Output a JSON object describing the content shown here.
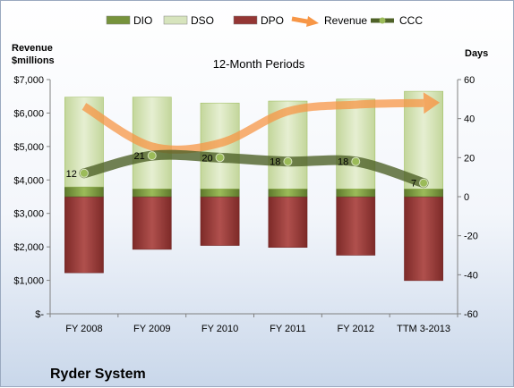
{
  "chart_data": {
    "type": "bar",
    "title": "12-Month Periods",
    "footer": "Ryder System",
    "left_axis_title_line1": "Revenue",
    "left_axis_title_line2": "$millions",
    "right_axis_title": "Days",
    "categories": [
      "FY 2008",
      "FY 2009",
      "FY 2010",
      "FY 2011",
      "FY 2012",
      "TTM 3-2013"
    ],
    "left_axis": {
      "range": [
        0,
        7000
      ],
      "ticks": [
        0,
        1000,
        2000,
        3000,
        4000,
        5000,
        6000,
        7000
      ],
      "tick_labels": [
        "$-",
        "$1,000",
        "$2,000",
        "$3,000",
        "$4,000",
        "$5,000",
        "$6,000",
        "$7,000"
      ]
    },
    "right_axis": {
      "range": [
        -60,
        60
      ],
      "ticks": [
        -60,
        -40,
        -20,
        0,
        20,
        40,
        60
      ],
      "tick_labels": [
        "-60",
        "-40",
        "-20",
        "0",
        "20",
        "40",
        "60"
      ]
    },
    "series": [
      {
        "name": "DIO",
        "axis": "right",
        "kind": "stacked-bar",
        "color": "#77933c",
        "values": [
          5,
          4,
          4,
          4,
          4,
          4
        ]
      },
      {
        "name": "DSO",
        "axis": "right",
        "kind": "stacked-bar",
        "color": "#d7e4bd",
        "values": [
          46,
          47,
          44,
          45,
          46,
          50
        ]
      },
      {
        "name": "DPO",
        "axis": "right",
        "kind": "stacked-bar-negative",
        "color": "#943634",
        "values": [
          -39,
          -27,
          -25,
          -26,
          -30,
          -43
        ]
      },
      {
        "name": "Revenue",
        "axis": "left",
        "kind": "line",
        "color": "#f79646",
        "values": [
          6200,
          5000,
          5100,
          6050,
          6250,
          6300
        ]
      },
      {
        "name": "CCC",
        "axis": "right",
        "kind": "line",
        "color": "#4f6228",
        "values": [
          12,
          21,
          20,
          18,
          18,
          7
        ],
        "labels": [
          "12",
          "21",
          "20",
          "18",
          "18",
          "7"
        ]
      }
    ],
    "legend": [
      {
        "name": "DIO",
        "color": "#77933c",
        "icon": "bar-swatch"
      },
      {
        "name": "DSO",
        "color": "#d7e4bd",
        "icon": "bar-swatch"
      },
      {
        "name": "DPO",
        "color": "#943634",
        "icon": "bar-swatch"
      },
      {
        "name": "Revenue",
        "color": "#f79646",
        "icon": "arrow-line"
      },
      {
        "name": "CCC",
        "color": "#4f6228",
        "icon": "marker-line"
      }
    ],
    "legend_position": "top",
    "grid": false
  }
}
